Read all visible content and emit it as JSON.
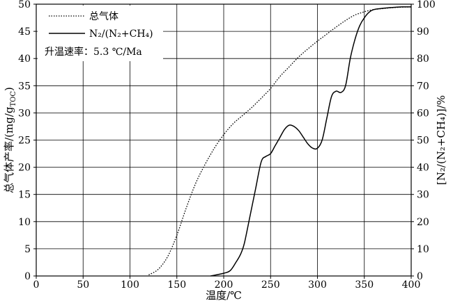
{
  "chart_data": {
    "type": "line",
    "xlabel": "温度/℃",
    "ylabel_left": "总气体产率/(mg/g",
    "ylabel_left_sub": "TOC",
    "ylabel_left_end": ")",
    "ylabel_right": "[N₂/(N₂+CH₄)]/%",
    "xlim": [
      0,
      400
    ],
    "ylim_left": [
      0,
      50
    ],
    "ylim_right": [
      0,
      100
    ],
    "x_ticks": [
      0,
      50,
      100,
      150,
      200,
      250,
      300,
      350,
      400
    ],
    "y_left_ticks": [
      0,
      5,
      10,
      15,
      20,
      25,
      30,
      35,
      40,
      45,
      50
    ],
    "y_right_ticks": [
      0,
      10,
      20,
      30,
      40,
      50,
      60,
      70,
      80,
      90,
      100
    ],
    "grid": true,
    "legend_position": "top-left",
    "annotation": "升温速率：5.3 ℃/Ma",
    "series": [
      {
        "name": "总气体",
        "axis": "left",
        "style": "dotted",
        "x": [
          120,
          130,
          140,
          150,
          160,
          170,
          180,
          190,
          200,
          210,
          220,
          230,
          240,
          250,
          260,
          270,
          280,
          290,
          300,
          310,
          320,
          330,
          340,
          350,
          360,
          370,
          380,
          390,
          400
        ],
        "y": [
          0.2,
          1.2,
          3.5,
          7.5,
          12.5,
          17.0,
          20.5,
          23.5,
          26.0,
          28.0,
          29.5,
          31.0,
          32.7,
          34.5,
          36.7,
          38.5,
          40.3,
          41.8,
          43.2,
          44.5,
          45.8,
          47.0,
          48.0,
          48.6,
          49.0,
          49.2,
          49.35,
          49.45,
          49.5
        ]
      },
      {
        "name": "N₂/(N₂+CH₄)",
        "axis": "right",
        "style": "solid",
        "x": [
          186,
          200,
          207,
          213,
          218,
          222,
          228,
          234,
          240,
          245,
          250,
          255,
          260,
          265,
          270,
          275,
          280,
          285,
          290,
          295,
          300,
          305,
          310,
          315,
          320,
          325,
          330,
          335,
          340,
          345,
          350,
          355,
          360,
          370,
          380,
          390,
          400
        ],
        "y": [
          0,
          1,
          2,
          5,
          8,
          12,
          22,
          32,
          42,
          44,
          45,
          48,
          51,
          54,
          55.5,
          55,
          53.5,
          51,
          48.5,
          47,
          47,
          50,
          58,
          66,
          68,
          67.5,
          70,
          80,
          87,
          92,
          95,
          97,
          98,
          98.5,
          98.8,
          99,
          99
        ]
      }
    ]
  }
}
